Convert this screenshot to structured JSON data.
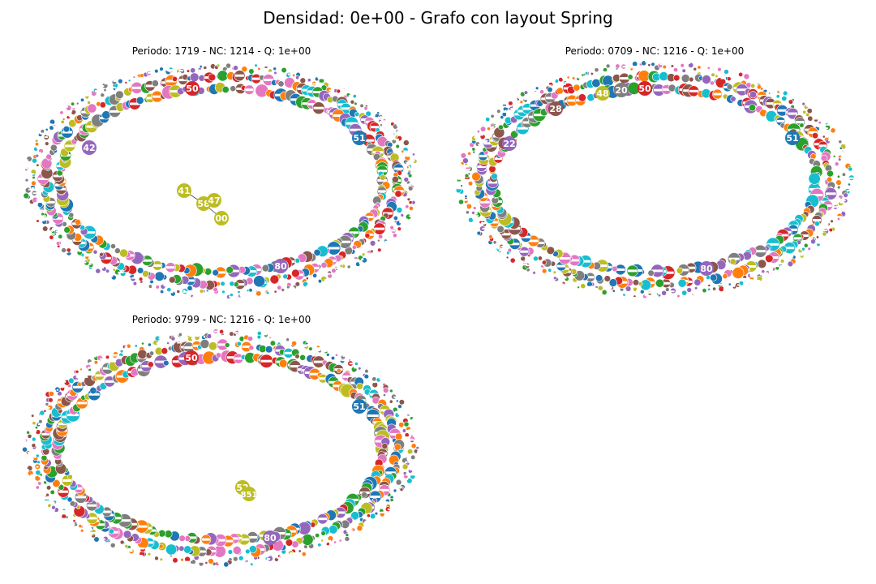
{
  "figure": {
    "title": "Densidad: 0e+00 - Grafo con layout Spring"
  },
  "palette": [
    "#1f77b4",
    "#ff7f0e",
    "#2ca02c",
    "#d62728",
    "#9467bd",
    "#8c564b",
    "#e377c2",
    "#7f7f7f",
    "#bcbd22",
    "#17becf"
  ],
  "panels": [
    {
      "title": "Periodo: 1719 - NC: 1214 - Q: 1e+00",
      "labeled_nodes": [
        {
          "label": "42",
          "color": "#9467bd"
        },
        {
          "label": "41",
          "color": "#bcbd22"
        },
        {
          "label": "58",
          "color": "#bcbd22"
        },
        {
          "label": "47",
          "color": "#bcbd22"
        },
        {
          "label": "00",
          "color": "#bcbd22"
        },
        {
          "label": "51",
          "color": "#1f77b4"
        },
        {
          "label": "50",
          "color": "#d62728"
        },
        {
          "label": "80",
          "color": "#9467bd"
        }
      ]
    },
    {
      "title": "Periodo: 0709 - NC: 1216 - Q: 1e+00",
      "labeled_nodes": [
        {
          "label": "22",
          "color": "#9467bd"
        },
        {
          "label": "51",
          "color": "#1f77b4"
        },
        {
          "label": "50",
          "color": "#d62728"
        },
        {
          "label": "48",
          "color": "#bcbd22"
        },
        {
          "label": "20",
          "color": "#7f7f7f"
        },
        {
          "label": "28",
          "color": "#8c564b"
        },
        {
          "label": "80",
          "color": "#9467bd"
        }
      ]
    },
    {
      "title": "Periodo: 9799 - NC: 1216 - Q: 1e+00",
      "labeled_nodes": [
        {
          "label": "52",
          "color": "#bcbd22"
        },
        {
          "label": "851",
          "color": "#bcbd22"
        },
        {
          "label": "51",
          "color": "#1f77b4"
        },
        {
          "label": "50",
          "color": "#d62728"
        },
        {
          "label": "80",
          "color": "#9467bd"
        }
      ]
    }
  ]
}
